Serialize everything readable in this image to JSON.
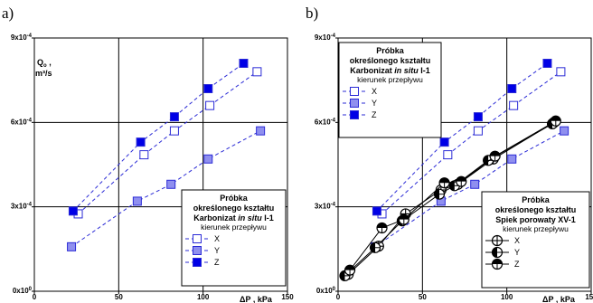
{
  "chart_data": [
    {
      "panel_label": "a)",
      "type": "scatter",
      "ylabel": "Q_o , m³/s",
      "ylabel_main": "Q",
      "ylabel_sub": "o",
      "ylabel_tail": " ,",
      "ylabel_unit": "m³/s",
      "xlabel": "ΔP , kPa",
      "xlabel_main": "ΔP",
      "xlabel_sep": " ,",
      "xlabel_unit": "kPa",
      "xlim": [
        0,
        150
      ],
      "ylim": [
        0,
        0.0009
      ],
      "xticks": [
        {
          "v": 0,
          "label": "0"
        },
        {
          "v": 50,
          "label": "50"
        },
        {
          "v": 100,
          "label": "100"
        },
        {
          "v": 150,
          "label": "150"
        }
      ],
      "yticks": [
        {
          "v": 0,
          "base": "0x10",
          "exp": "0"
        },
        {
          "v": 0.0003,
          "base": "3x10",
          "exp": "-4"
        },
        {
          "v": 0.0006,
          "base": "6x10",
          "exp": "-4"
        },
        {
          "v": 0.0009,
          "base": "9x10",
          "exp": "-4"
        }
      ],
      "grid": true,
      "legend": {
        "position": "bottom-right",
        "title_lines": [
          "Próbka",
          "określonego kształtu"
        ],
        "material": "Karbonizat",
        "material_italic": "in situ",
        "material_tail": " I-1",
        "subtitle": "kierunek przepływu",
        "entries": [
          {
            "label": "X",
            "marker": "open-square"
          },
          {
            "label": "Y",
            "marker": "grey-square"
          },
          {
            "label": "Z",
            "marker": "blue-square"
          }
        ]
      },
      "series": [
        {
          "name": "X",
          "marker": "open-square",
          "color": "#2b2bd6",
          "fill": "#ffffff",
          "x": [
            26,
            65,
            83,
            104,
            132
          ],
          "y": [
            0.000275,
            0.000485,
            0.00057,
            0.00066,
            0.00078
          ]
        },
        {
          "name": "Y",
          "marker": "grey-square",
          "color": "#2b2bd6",
          "fill": "#8f8fef",
          "x": [
            22,
            61,
            81,
            103,
            134
          ],
          "y": [
            0.000158,
            0.00032,
            0.00038,
            0.00047,
            0.00057
          ]
        },
        {
          "name": "Z",
          "marker": "blue-square",
          "color": "#2b2bd6",
          "fill": "#0000e6",
          "x": [
            23,
            63,
            83,
            103,
            124
          ],
          "y": [
            0.000285,
            0.00053,
            0.00062,
            0.00072,
            0.00081
          ]
        }
      ]
    },
    {
      "panel_label": "b)",
      "type": "scatter",
      "ylabel": "Q_o , m³/s",
      "ylabel_main": "Q",
      "ylabel_sub": "o",
      "ylabel_tail": " ,",
      "ylabel_unit": "m³/s",
      "xlabel": "ΔP , kPa",
      "xlabel_main": "ΔP",
      "xlabel_sep": " ,",
      "xlabel_unit": "kPa",
      "xlim": [
        0,
        150
      ],
      "ylim": [
        0,
        0.0009
      ],
      "xticks": [
        {
          "v": 0,
          "label": "0"
        },
        {
          "v": 50,
          "label": "50"
        },
        {
          "v": 100,
          "label": "100"
        },
        {
          "v": 150,
          "label": "150"
        }
      ],
      "yticks": [
        {
          "v": 0,
          "base": "0x10",
          "exp": "0"
        },
        {
          "v": 0.0003,
          "base": "3x10",
          "exp": "-4"
        },
        {
          "v": 0.0006,
          "base": "6x10",
          "exp": "-4"
        },
        {
          "v": 0.0009,
          "base": "9x10",
          "exp": "-4"
        }
      ],
      "grid": true,
      "legends": [
        {
          "position": "top-left",
          "title_lines": [
            "Próbka",
            "określonego kształtu"
          ],
          "material": "Karbonizat",
          "material_italic": "in situ",
          "material_tail": " I-1",
          "subtitle": "kierunek przepływu",
          "entries": [
            {
              "label": "X",
              "marker": "open-square"
            },
            {
              "label": "Y",
              "marker": "grey-square"
            },
            {
              "label": "Z",
              "marker": "blue-square"
            }
          ]
        },
        {
          "position": "bottom-right",
          "title_lines": [
            "Próbka",
            "określonego kształtu"
          ],
          "material": "Spiek porowaty XV-1",
          "material_italic": "",
          "material_tail": "",
          "subtitle": "kierunek przepływu",
          "entries": [
            {
              "label": "X",
              "marker": "circle-cross"
            },
            {
              "label": "Y",
              "marker": "circle-half-left"
            },
            {
              "label": "Z",
              "marker": "circle-half-top"
            }
          ]
        }
      ],
      "series": [
        {
          "name": "X (Karbonizat)",
          "marker": "open-square",
          "color": "#2b2bd6",
          "fill": "#ffffff",
          "x": [
            26,
            65,
            83,
            104,
            132
          ],
          "y": [
            0.000275,
            0.000485,
            0.00057,
            0.00066,
            0.00078
          ]
        },
        {
          "name": "Y (Karbonizat)",
          "marker": "grey-square",
          "color": "#2b2bd6",
          "fill": "#8f8fef",
          "x": [
            22,
            61,
            81,
            103,
            134
          ],
          "y": [
            0.000158,
            0.00032,
            0.00038,
            0.00047,
            0.00057
          ]
        },
        {
          "name": "Z (Karbonizat)",
          "marker": "blue-square",
          "color": "#2b2bd6",
          "fill": "#0000e6",
          "x": [
            23,
            63,
            83,
            103,
            124
          ],
          "y": [
            0.000285,
            0.00053,
            0.00062,
            0.00072,
            0.00081
          ]
        },
        {
          "name": "X (Spiek)",
          "marker": "circle-cross",
          "color": "#000000",
          "fill": "#ffffff",
          "x": [
            6,
            24,
            40,
            61,
            71,
            92,
            128
          ],
          "y": [
            6e-05,
            0.00016,
            0.000275,
            0.00036,
            0.00038,
            0.00047,
            0.0006
          ]
        },
        {
          "name": "Y (Spiek)",
          "marker": "circle-half-left",
          "color": "#000000",
          "fill": "#ffffff",
          "x": [
            4,
            22,
            38,
            60,
            69,
            89,
            127
          ],
          "y": [
            5.5e-05,
            0.000155,
            0.00025,
            0.000345,
            0.000375,
            0.000465,
            0.000595
          ]
        },
        {
          "name": "Z (Spiek)",
          "marker": "circle-half-top",
          "color": "#000000",
          "fill": "#ffffff",
          "x": [
            7,
            26,
            39,
            63,
            73,
            93,
            129
          ],
          "y": [
            7.5e-05,
            0.000225,
            0.000255,
            0.000385,
            0.00039,
            0.00048,
            0.000605
          ]
        }
      ]
    }
  ]
}
